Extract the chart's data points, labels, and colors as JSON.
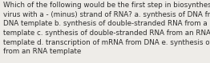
{
  "lines": [
    "Which of the following would be the first step in biosynthesis of a",
    "virus with a - (minus) strand of RNA? a. synthesis of DNA from a",
    "DNA template b. synthesis of double-stranded RNA from a DNA",
    "template c. synthesis of double-stranded RNA from an RNA",
    "template d. transcription of mRNA from DNA e. synthesis of DNA",
    "from an RNA template"
  ],
  "bg_color": "#eeece8",
  "text_color": "#2d2d2d",
  "fontsize": 6.35,
  "figsize": [
    2.62,
    0.79
  ],
  "dpi": 100,
  "linespacing": 1.38
}
